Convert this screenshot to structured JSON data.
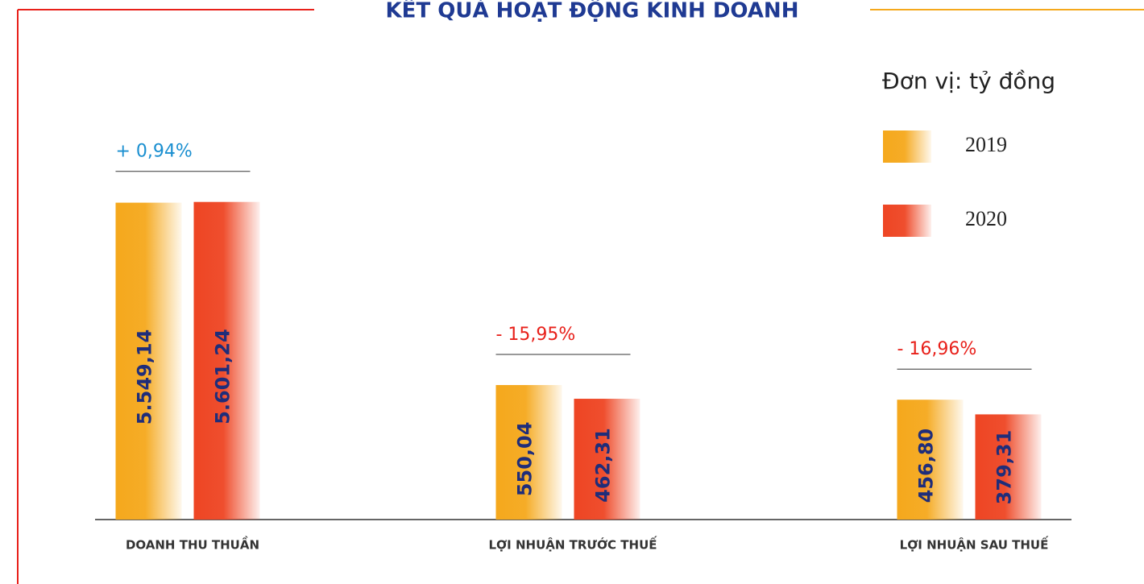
{
  "chart_data": {
    "type": "bar",
    "title": "KẾT QUẢ HOẠT ĐỘNG KINH DOANH",
    "unit_label": "Đơn vị: tỷ đồng",
    "categories": [
      "DOANH THU THUẦN",
      "LỢI NHUẬN TRƯỚC THUẾ",
      "LỢI NHUẬN SAU THUẾ"
    ],
    "series": [
      {
        "name": "2019",
        "color": "#f5a81c",
        "values": [
          5549.14,
          550.04,
          456.8
        ],
        "value_labels": [
          "5.549,14",
          "550,04",
          "456,80"
        ]
      },
      {
        "name": "2020",
        "color": "#ee4523",
        "values": [
          5601.24,
          462.31,
          379.31
        ],
        "value_labels": [
          "5.601,24",
          "462,31",
          "379,31"
        ]
      }
    ],
    "annotations": [
      {
        "text": "+ 0,94%",
        "color": "#1a8fd0"
      },
      {
        "text": "- 15,95%",
        "color": "#e8201a"
      },
      {
        "text": "- 16,96%",
        "color": "#e8201a"
      }
    ],
    "log_scale": true,
    "ylim": [
      100,
      32000
    ]
  }
}
